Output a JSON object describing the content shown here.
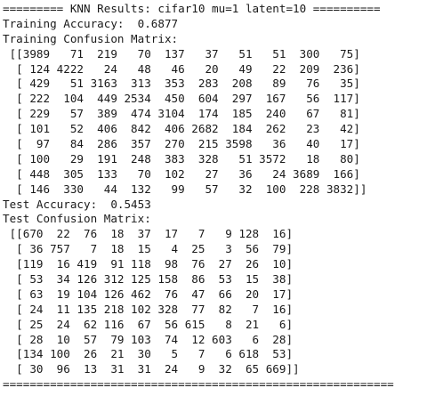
{
  "output": {
    "header": "========= KNN Results: cifar10 mu=1 latent=10 ==========",
    "training_accuracy_line": "Training Accuracy:  0.6877",
    "training_matrix_title": "Training Confusion Matrix:",
    "training_matrix_rows": [
      " [[3989   71  219   70  137   37   51   51  300   75]",
      "  [ 124 4222   24   48   46   20   49   22  209  236]",
      "  [ 429   51 3163  313  353  283  208   89   76   35]",
      "  [ 222  104  449 2534  450  604  297  167   56  117]",
      "  [ 229   57  389  474 3104  174  185  240   67   81]",
      "  [ 101   52  406  842  406 2682  184  262   23   42]",
      "  [  97   84  286  357  270  215 3598   36   40   17]",
      "  [ 100   29  191  248  383  328   51 3572   18   80]",
      "  [ 448  305  133   70  102   27   36   24 3689  166]",
      "  [ 146  330   44  132   99   57   32  100  228 3832]]"
    ],
    "test_accuracy_line": "Test Accuracy:  0.5453",
    "test_matrix_title": "Test Confusion Matrix:",
    "test_matrix_rows": [
      " [[670  22  76  18  37  17   7   9 128  16]",
      "  [ 36 757   7  18  15   4  25   3  56  79]",
      "  [119  16 419  91 118  98  76  27  26  10]",
      "  [ 53  34 126 312 125 158  86  53  15  38]",
      "  [ 63  19 104 126 462  76  47  66  20  17]",
      "  [ 24  11 135 218 102 328  77  82   7  16]",
      "  [ 25  24  62 116  67  56 615   8  21   6]",
      "  [ 28  10  57  79 103  74  12 603   6  28]",
      "  [134 100  26  21  30   5   7   6 618  53]",
      "  [ 30  96  13  31  31  24   9  32  65 669]]"
    ],
    "footer": "=========================================================="
  }
}
